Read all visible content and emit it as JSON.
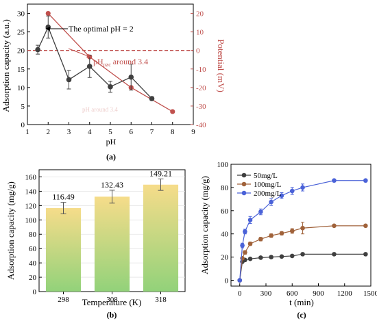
{
  "panels": {
    "a": {
      "label": "(a)"
    },
    "b": {
      "label": "(b)"
    },
    "c": {
      "label": "(c)"
    }
  },
  "colors": {
    "dark_series": "#3f3f3f",
    "zeta_series": "#c0504d",
    "pzc_line": "#c0504d",
    "series_50": "#3f3f3f",
    "series_100": "#a0623a",
    "series_200": "#4a62d8",
    "bar_top": "#f6dc8a",
    "bar_bottom": "#92d27a"
  },
  "chart_data": [
    {
      "type": "line",
      "panel": "a",
      "xlabel": "pH",
      "ylabel": "Adsorption capacity (a.u.)",
      "y2label": "Potential (mV)",
      "xlim": [
        1,
        9
      ],
      "ylim": [
        0,
        32.5
      ],
      "y2lim": [
        -40,
        25
      ],
      "xticks": [
        1,
        2,
        3,
        4,
        5,
        6,
        7,
        8,
        9
      ],
      "yticks": [
        0,
        5,
        10,
        15,
        20,
        25,
        30
      ],
      "y2ticks": [
        -40,
        -30,
        -20,
        -10,
        0,
        10,
        20
      ],
      "annotations": {
        "optimal": "The optimal pH = 2",
        "pzc_prefix": "pH",
        "pzc_sub": "pzc",
        "pzc_suffix": " around 3.4",
        "pzc_ghost": "pH",
        "pzc_ghost_suffix": " around 3.4"
      },
      "pzc_potential": 0,
      "series": [
        {
          "role": "adsorption",
          "axis": "left",
          "x": [
            1.5,
            2,
            3,
            4,
            5,
            6,
            7
          ],
          "y": [
            20.2,
            26.3,
            12.1,
            15.7,
            10.2,
            12.8,
            7.0
          ],
          "err": [
            1.2,
            3.0,
            2.5,
            3.0,
            1.5,
            3.5,
            0.5
          ]
        },
        {
          "role": "zeta",
          "axis": "right",
          "x": [
            2,
            4,
            6,
            8
          ],
          "y": [
            20,
            -3.5,
            -20,
            -33
          ]
        }
      ]
    },
    {
      "type": "bar",
      "panel": "b",
      "xlabel": "Temperature (K)",
      "ylabel": "Adsorption capacity (mg/g)",
      "categories": [
        "298",
        "308",
        "318"
      ],
      "values": [
        116.49,
        132.43,
        149.21
      ],
      "value_labels": [
        "116.49",
        "132.43",
        "149.21"
      ],
      "err": [
        8,
        9,
        8
      ],
      "ylim": [
        0,
        170
      ],
      "yticks": [
        0,
        20,
        40,
        60,
        80,
        100,
        120,
        140,
        160
      ]
    },
    {
      "type": "line",
      "panel": "c",
      "xlabel": "t (min)",
      "ylabel": "Adsorption capacity (mg/g)",
      "xlim": [
        -100,
        1500
      ],
      "ylim": [
        -5,
        100
      ],
      "xticks": [
        0,
        300,
        600,
        900,
        1200,
        1500
      ],
      "yticks": [
        0,
        20,
        40,
        60,
        80,
        100
      ],
      "legend": "top-left",
      "series": [
        {
          "name": "50mg/L",
          "x": [
            0,
            30,
            60,
            120,
            240,
            360,
            480,
            600,
            720,
            1080,
            1440
          ],
          "y": [
            0,
            16,
            17.5,
            18.5,
            19.5,
            20,
            20.5,
            21,
            22.5,
            22.5,
            22.5
          ],
          "err": [
            0,
            1,
            1,
            1,
            1,
            1,
            1,
            1,
            1,
            0.5,
            0.5
          ]
        },
        {
          "name": "100mg/L",
          "x": [
            0,
            30,
            60,
            120,
            240,
            360,
            480,
            600,
            720,
            1080,
            1440
          ],
          "y": [
            0,
            19,
            24,
            31.5,
            35.5,
            38.5,
            40.5,
            42.5,
            45,
            47,
            47
          ],
          "err": [
            0,
            1,
            1.5,
            1.5,
            1.5,
            1.5,
            1.5,
            2,
            5,
            1,
            1
          ]
        },
        {
          "name": "200mg/L",
          "x": [
            0,
            30,
            60,
            120,
            240,
            360,
            480,
            600,
            720,
            1080,
            1440
          ],
          "y": [
            0,
            30,
            42,
            52,
            59,
            67.5,
            73,
            77,
            80,
            86,
            86
          ],
          "err": [
            0,
            2,
            2,
            3,
            2.5,
            3,
            2.5,
            3,
            3,
            1,
            1
          ]
        }
      ]
    }
  ]
}
